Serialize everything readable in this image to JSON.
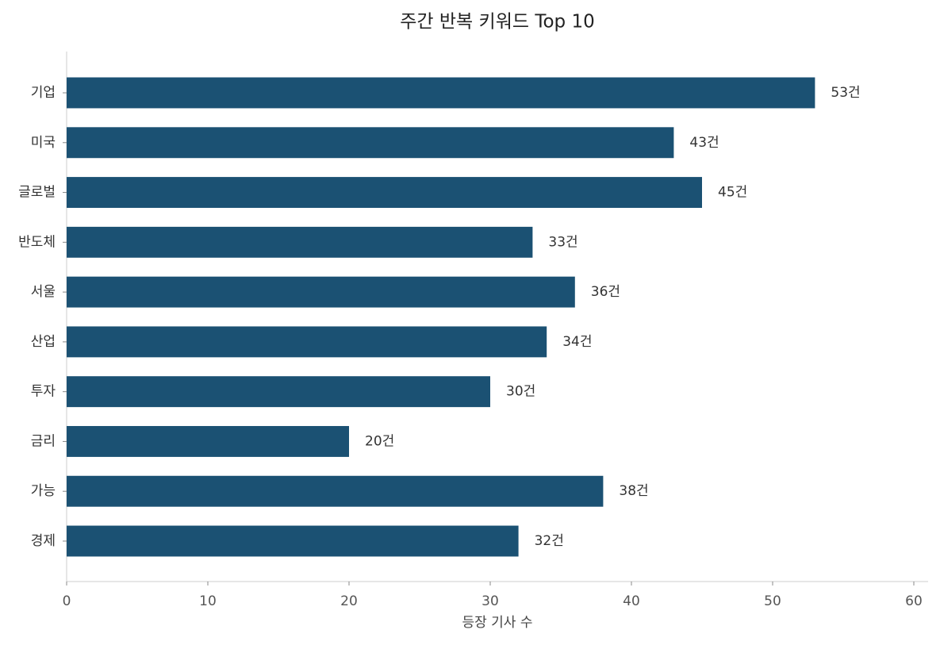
{
  "chart_data": {
    "type": "barh",
    "title": "주간 반복 키워드 Top 10",
    "x_label": "등장 기사 수",
    "categories": [
      "기업",
      "미국",
      "글로벌",
      "반도체",
      "서울",
      "산업",
      "투자",
      "금리",
      "가능",
      "경제"
    ],
    "values": [
      53,
      43,
      45,
      33,
      36,
      34,
      30,
      20,
      38,
      32
    ],
    "value_labels": [
      "53건",
      "43건",
      "45건",
      "33건",
      "36건",
      "34건",
      "30건",
      "20건",
      "38건",
      "32건"
    ],
    "color": "#1b5173",
    "xlim": [
      0,
      60
    ],
    "xticks": [
      0,
      10,
      20,
      30,
      40,
      50,
      60
    ],
    "grid": false
  }
}
